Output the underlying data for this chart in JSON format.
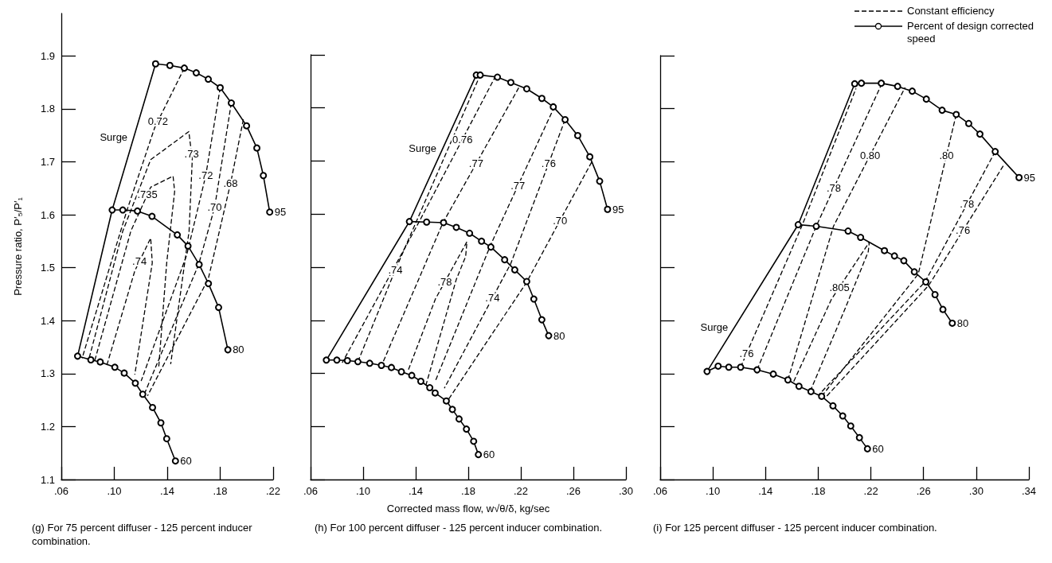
{
  "chart_data": [
    {
      "type": "line",
      "ylabel": "Pressure ratio, P′₅/P′₁",
      "xlim": [
        0.06,
        0.22
      ],
      "ylim": [
        1.1,
        1.98
      ],
      "xticks": [
        {
          "value": 0.06,
          "label": ".06"
        },
        {
          "value": 0.1,
          "label": ".10"
        },
        {
          "value": 0.14,
          "label": ".14"
        },
        {
          "value": 0.18,
          "label": ".18"
        },
        {
          "value": 0.22,
          "label": ".22"
        }
      ],
      "yticks": [
        1.1,
        1.2,
        1.3,
        1.4,
        1.5,
        1.6,
        1.7,
        1.8,
        1.9
      ],
      "grid": false,
      "series": [
        {
          "name": "95",
          "color": "#000000",
          "marker": "circle",
          "line_style": "solid",
          "x": [
            0.1312,
            0.142,
            0.1529,
            0.1619,
            0.171,
            0.18,
            0.1884,
            0.1999,
            0.2077,
            0.2126,
            0.2174
          ],
          "values": [
            1.885,
            1.882,
            1.877,
            1.868,
            1.856,
            1.84,
            1.811,
            1.768,
            1.726,
            1.674,
            1.605
          ]
        },
        {
          "name": "80",
          "color": "#000000",
          "marker": "circle",
          "line_style": "solid",
          "x": [
            0.0984,
            0.1064,
            0.1175,
            0.1285,
            0.1476,
            0.1557,
            0.1641,
            0.1711,
            0.1788,
            0.1858
          ],
          "values": [
            1.609,
            1.609,
            1.607,
            1.597,
            1.562,
            1.541,
            1.506,
            1.47,
            1.425,
            1.345
          ]
        },
        {
          "name": "60",
          "color": "#000000",
          "marker": "circle",
          "line_style": "solid",
          "x": [
            0.0723,
            0.0823,
            0.0894,
            0.1004,
            0.1075,
            0.1159,
            0.1215,
            0.1289,
            0.1352,
            0.1396,
            0.1462
          ],
          "values": [
            1.333,
            1.326,
            1.322,
            1.312,
            1.301,
            1.282,
            1.261,
            1.236,
            1.207,
            1.177,
            1.135
          ]
        },
        {
          "name": "Surge",
          "color": "#000000",
          "marker": "none",
          "line_style": "solid",
          "x": [
            0.0723,
            0.0984,
            0.1312
          ],
          "values": [
            1.333,
            1.609,
            1.885
          ]
        },
        {
          "color": "#000000",
          "marker": "none",
          "line_style": "dashed",
          "x": [
            0.1529,
            0.133,
            0.1306,
            0.1094,
            0.0757
          ],
          "values": [
            1.877,
            1.777,
            1.765,
            1.607,
            1.329
          ]
        },
        {
          "color": "#000000",
          "marker": "none",
          "line_style": "dashed",
          "x": [
            0.0811,
            0.1064,
            0.1275,
            0.1563,
            0.1584,
            0.1589,
            0.1565,
            0.1426
          ],
          "values": [
            1.33,
            1.569,
            1.704,
            1.757,
            1.715,
            1.704,
            1.569,
            1.318
          ]
        },
        {
          "color": "#000000",
          "marker": "none",
          "line_style": "dashed",
          "x": [
            0.0853,
            0.1125,
            0.125,
            0.1275,
            0.1444,
            0.1456,
            0.1396,
            0.1336
          ],
          "values": [
            1.325,
            1.569,
            1.638,
            1.652,
            1.673,
            1.644,
            1.509,
            1.313
          ]
        },
        {
          "color": "#000000",
          "marker": "none",
          "line_style": "dashed",
          "x": [
            0.0944,
            0.1155,
            0.119,
            0.1275,
            0.1287,
            0.1155
          ],
          "values": [
            1.316,
            1.494,
            1.512,
            1.556,
            1.509,
            1.298
          ]
        },
        {
          "color": "#000000",
          "marker": "none",
          "line_style": "dashed",
          "x": [
            0.18,
            0.1691,
            0.1547,
            0.1203
          ],
          "values": [
            1.84,
            1.674,
            1.524,
            1.286
          ]
        },
        {
          "color": "#000000",
          "marker": "none",
          "line_style": "dashed",
          "x": [
            0.1884,
            0.1758,
            0.1637,
            0.1233
          ],
          "values": [
            1.811,
            1.614,
            1.506,
            1.265
          ]
        },
        {
          "color": "#000000",
          "marker": "none",
          "line_style": "dashed",
          "x": [
            0.1975,
            0.1878,
            0.171,
            0.1251
          ],
          "values": [
            1.78,
            1.659,
            1.479,
            1.258
          ]
        }
      ],
      "annotations": [
        {
          "text": "0.72",
          "x": 0.133,
          "y": 1.777
        },
        {
          "text": ".73",
          "x": 0.1584,
          "y": 1.715
        },
        {
          "text": ".735",
          "x": 0.125,
          "y": 1.638
        },
        {
          "text": ".74",
          "x": 0.119,
          "y": 1.512
        },
        {
          "text": ".72",
          "x": 0.1691,
          "y": 1.674
        },
        {
          "text": ".70",
          "x": 0.1758,
          "y": 1.614
        },
        {
          "text": ".68",
          "x": 0.1878,
          "y": 1.659
        },
        "(g) For 75 percent diffuser - 125 percent inducer combination."
      ]
    },
    {
      "type": "line",
      "xlabel": "Corrected mass flow, w√θ/δ, kg/sec",
      "xlim": [
        0.06,
        0.3
      ],
      "ylim": [
        1.1,
        1.9
      ],
      "xticks": [
        {
          "value": 0.06,
          "label": ".06"
        },
        {
          "value": 0.1,
          "label": ".10"
        },
        {
          "value": 0.14,
          "label": ".14"
        },
        {
          "value": 0.18,
          "label": ".18"
        },
        {
          "value": 0.22,
          "label": ".22"
        },
        {
          "value": 0.26,
          "label": ".26"
        },
        {
          "value": 0.3,
          "label": ".30"
        }
      ],
      "yticks": [
        1.1,
        1.2,
        1.3,
        1.4,
        1.5,
        1.6,
        1.7,
        1.8,
        1.9
      ],
      "tick_labels": "x",
      "grid": false,
      "series": [
        {
          "name": "95",
          "color": "#000000",
          "marker": "circle",
          "line_style": "solid",
          "x": [
            0.1861,
            0.1891,
            0.2022,
            0.2124,
            0.2245,
            0.236,
            0.2447,
            0.2537,
            0.2633,
            0.2725,
            0.28,
            0.286
          ],
          "values": [
            1.862,
            1.862,
            1.858,
            1.848,
            1.836,
            1.818,
            1.802,
            1.778,
            1.748,
            1.708,
            1.662,
            1.609
          ]
        },
        {
          "name": "80",
          "color": "#000000",
          "marker": "circle",
          "line_style": "solid",
          "x": [
            0.1352,
            0.1483,
            0.1612,
            0.1709,
            0.181,
            0.1901,
            0.1972,
            0.2077,
            0.2154,
            0.2245,
            0.2299,
            0.236,
            0.2412
          ],
          "values": [
            1.586,
            1.585,
            1.584,
            1.575,
            1.564,
            1.549,
            1.538,
            1.514,
            1.495,
            1.473,
            1.44,
            1.401,
            1.371
          ]
        },
        {
          "name": "60",
          "color": "#000000",
          "marker": "circle",
          "line_style": "solid",
          "x": [
            0.072,
            0.08,
            0.088,
            0.096,
            0.105,
            0.1139,
            0.1215,
            0.1291,
            0.137,
            0.1439,
            0.1507,
            0.1548,
            0.1633,
            0.1679,
            0.173,
            0.1786,
            0.1841,
            0.1877
          ],
          "values": [
            1.325,
            1.325,
            1.324,
            1.322,
            1.319,
            1.315,
            1.311,
            1.303,
            1.296,
            1.285,
            1.273,
            1.263,
            1.248,
            1.232,
            1.214,
            1.195,
            1.172,
            1.147
          ]
        },
        {
          "name": "Surge",
          "color": "#000000",
          "marker": "none",
          "line_style": "solid",
          "x": [
            0.072,
            0.1352,
            0.1861
          ],
          "values": [
            1.325,
            1.586,
            1.862
          ]
        },
        {
          "color": "#000000",
          "marker": "none",
          "line_style": "dashed",
          "x": [
            0.096,
            0.1245,
            0.15,
            0.1891
          ],
          "values": [
            1.322,
            1.495,
            1.64,
            1.862
          ]
        },
        {
          "color": "#000000",
          "marker": "none",
          "line_style": "dashed",
          "x": [
            0.201,
            0.1756,
            0.1427,
            0.0841
          ],
          "values": [
            1.861,
            1.741,
            1.586,
            1.32
          ]
        },
        {
          "color": "#000000",
          "marker": "none",
          "line_style": "dashed",
          "x": [
            0.2184,
            0.186,
            0.1608,
            0.1144
          ],
          "values": [
            1.838,
            1.695,
            1.584,
            1.317
          ]
        },
        {
          "color": "#000000",
          "marker": "none",
          "line_style": "dashed",
          "x": [
            0.2457,
            0.2177,
            0.1972,
            0.1547
          ],
          "values": [
            1.803,
            1.653,
            1.543,
            1.284
          ]
        },
        {
          "color": "#000000",
          "marker": "none",
          "line_style": "dashed",
          "x": [
            0.2537,
            0.2411,
            0.2124,
            0.1984,
            0.1618
          ],
          "values": [
            1.778,
            1.695,
            1.507,
            1.442,
            1.272
          ]
        },
        {
          "color": "#000000",
          "marker": "none",
          "line_style": "dashed",
          "x": [
            0.2739,
            0.2498,
            0.2245,
            0.1639
          ],
          "values": [
            1.698,
            1.588,
            1.472,
            1.247
          ]
        },
        {
          "color": "#000000",
          "marker": "none",
          "line_style": "dashed",
          "x": [
            0.1345,
            0.155,
            0.1621,
            0.179,
            0.178,
            0.1709,
            0.1477
          ],
          "values": [
            1.307,
            1.44,
            1.472,
            1.548,
            1.52,
            1.477,
            1.277
          ]
        }
      ],
      "annotations": [
        {
          "text": ".74",
          "x": 0.1245,
          "y": 1.495
        },
        {
          "text": "0.76",
          "x": 0.1756,
          "y": 1.741
        },
        {
          "text": ".77",
          "x": 0.186,
          "y": 1.695
        },
        {
          "text": ".77",
          "x": 0.2177,
          "y": 1.653
        },
        {
          "text": ".76",
          "x": 0.2411,
          "y": 1.695
        },
        {
          "text": ".74",
          "x": 0.1984,
          "y": 1.442
        },
        {
          "text": ".70",
          "x": 0.2498,
          "y": 1.588
        },
        {
          "text": ".78",
          "x": 0.1621,
          "y": 1.472
        },
        "(h) For 100 percent diffuser - 125 percent inducer combination."
      ]
    },
    {
      "type": "line",
      "xlim": [
        0.06,
        0.34
      ],
      "ylim": [
        1.1,
        1.9
      ],
      "xticks": [
        {
          "value": 0.06,
          "label": ".06"
        },
        {
          "value": 0.1,
          "label": ".10"
        },
        {
          "value": 0.14,
          "label": ".14"
        },
        {
          "value": 0.18,
          "label": ".18"
        },
        {
          "value": 0.22,
          "label": ".22"
        },
        {
          "value": 0.26,
          "label": ".26"
        },
        {
          "value": 0.3,
          "label": ".30"
        },
        {
          "value": 0.34,
          "label": ".34"
        }
      ],
      "yticks": [
        1.1,
        1.2,
        1.3,
        1.4,
        1.5,
        1.6,
        1.7,
        1.8,
        1.9
      ],
      "tick_labels": "x",
      "grid": false,
      "series": [
        {
          "name": "95",
          "color": "#000000",
          "marker": "circle",
          "line_style": "solid",
          "x": [
            0.2077,
            0.2128,
            0.2279,
            0.2403,
            0.2514,
            0.2621,
            0.2741,
            0.2848,
            0.2943,
            0.3028,
            0.3144,
            0.3325
          ],
          "values": [
            1.847,
            1.848,
            1.848,
            1.842,
            1.833,
            1.818,
            1.797,
            1.789,
            1.772,
            1.752,
            1.719,
            1.67
          ]
        },
        {
          "name": "80",
          "color": "#000000",
          "marker": "circle",
          "line_style": "solid",
          "x": [
            0.1648,
            0.1785,
            0.2027,
            0.2122,
            0.2303,
            0.2379,
            0.245,
            0.253,
            0.2617,
            0.2687,
            0.2747,
            0.2818
          ],
          "values": [
            1.581,
            1.578,
            1.569,
            1.557,
            1.532,
            1.522,
            1.513,
            1.492,
            1.473,
            1.449,
            1.421,
            1.395
          ]
        },
        {
          "name": "60",
          "color": "#000000",
          "marker": "circle",
          "line_style": "solid",
          "x": [
            0.0956,
            0.104,
            0.1121,
            0.1211,
            0.1336,
            0.1459,
            0.157,
            0.1654,
            0.1745,
            0.1826,
            0.1912,
            0.1986,
            0.2047,
            0.2113,
            0.2174
          ],
          "values": [
            1.304,
            1.314,
            1.312,
            1.312,
            1.307,
            1.299,
            1.288,
            1.276,
            1.266,
            1.257,
            1.239,
            1.22,
            1.201,
            1.179,
            1.158
          ]
        },
        {
          "name": "Surge",
          "color": "#000000",
          "marker": "none",
          "line_style": "solid",
          "x": [
            0.0956,
            0.1648,
            0.2077
          ],
          "values": [
            1.304,
            1.581,
            1.847
          ]
        },
        {
          "color": "#000000",
          "marker": "none",
          "line_style": "dashed",
          "x": [
            0.1211,
            0.1256,
            0.1675,
            0.2087
          ],
          "values": [
            1.312,
            1.338,
            1.578,
            1.838
          ]
        },
        {
          "color": "#000000",
          "marker": "none",
          "line_style": "dashed",
          "x": [
            0.1336,
            0.1785,
            0.1918,
            0.2279
          ],
          "values": [
            1.307,
            1.578,
            1.65,
            1.845
          ]
        },
        {
          "color": "#000000",
          "marker": "none",
          "line_style": "dashed",
          "x": [
            0.157,
            0.1916,
            0.2194,
            0.246
          ],
          "values": [
            1.288,
            1.578,
            1.712,
            1.84
          ]
        },
        {
          "color": "#000000",
          "marker": "none",
          "line_style": "dashed",
          "x": [
            0.1614,
            0.19,
            0.1961,
            0.2188,
            0.218,
            0.2,
            0.1745
          ],
          "values": [
            1.285,
            1.44,
            1.463,
            1.548,
            1.53,
            1.42,
            1.27
          ]
        },
        {
          "color": "#000000",
          "marker": "none",
          "line_style": "dashed",
          "x": [
            0.2848,
            0.2774,
            0.256,
            0.1826
          ],
          "values": [
            1.789,
            1.712,
            1.488,
            1.257
          ]
        },
        {
          "color": "#000000",
          "marker": "none",
          "line_style": "dashed",
          "x": [
            0.3144,
            0.293,
            0.2611,
            0.1805
          ],
          "values": [
            1.719,
            1.62,
            1.473,
            1.26
          ]
        },
        {
          "color": "#000000",
          "marker": "none",
          "line_style": "dashed",
          "x": [
            0.3205,
            0.2899,
            0.2641,
            0.1856
          ],
          "values": [
            1.692,
            1.57,
            1.467,
            1.255
          ]
        }
      ],
      "annotations": [
        {
          "text": ".76",
          "x": 0.1256,
          "y": 1.338
        },
        {
          "text": ".78",
          "x": 0.1918,
          "y": 1.65
        },
        {
          "text": "0.80",
          "x": 0.2194,
          "y": 1.712
        },
        {
          "text": ".805",
          "x": 0.1961,
          "y": 1.463
        },
        {
          "text": ".80",
          "x": 0.2774,
          "y": 1.712
        },
        {
          "text": ".78",
          "x": 0.293,
          "y": 1.62
        },
        {
          "text": ".76",
          "x": 0.2899,
          "y": 1.57
        },
        "Constant efficiency",
        "Percent of design corrected speed",
        "(i) For 125 percent diffuser - 125 percent inducer combination."
      ]
    }
  ]
}
